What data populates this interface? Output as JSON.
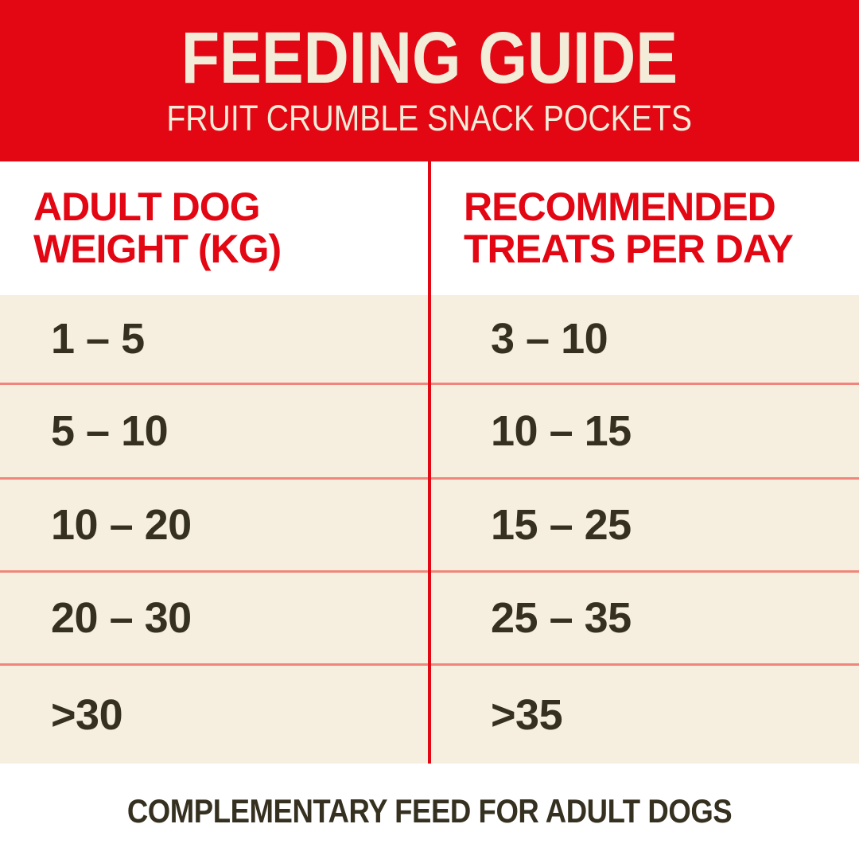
{
  "banner": {
    "title": "FEEDING GUIDE",
    "subtitle": "FRUIT CRUMBLE SNACK POCKETS"
  },
  "table": {
    "columns": [
      "ADULT DOG WEIGHT (KG)",
      "RECOMMENDED TREATS PER DAY"
    ],
    "rows": [
      {
        "weight": "1 – 5",
        "treats": "3 – 10"
      },
      {
        "weight": "5 – 10",
        "treats": "10 – 15"
      },
      {
        "weight": "10 – 20",
        "treats": "15 – 25"
      },
      {
        "weight": "20 – 30",
        "treats": "25 – 35"
      },
      {
        "weight": ">30",
        "treats": ">35"
      }
    ]
  },
  "footer": {
    "note": "COMPLEMENTARY FEED FOR ADULT DOGS"
  },
  "colors": {
    "red": "#e30613",
    "salmon": "#ef857b",
    "cream": "#f6efe0",
    "ink": "#35301f",
    "paper": "#ffffff",
    "banner_text": "#f3ecd9"
  },
  "chart_data": {
    "type": "table",
    "title": "FEEDING GUIDE",
    "subtitle": "FRUIT CRUMBLE SNACK POCKETS",
    "columns": [
      "ADULT DOG WEIGHT (KG)",
      "RECOMMENDED TREATS PER DAY"
    ],
    "rows": [
      [
        "1 – 5",
        "3 – 10"
      ],
      [
        "5 – 10",
        "10 – 15"
      ],
      [
        "10 – 20",
        "15 – 25"
      ],
      [
        "20 – 30",
        "25 – 35"
      ],
      [
        ">30",
        ">35"
      ]
    ],
    "note": "COMPLEMENTARY FEED FOR ADULT DOGS"
  }
}
